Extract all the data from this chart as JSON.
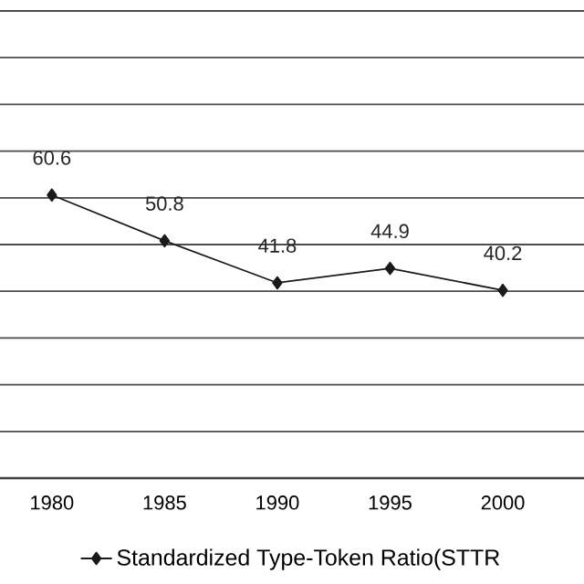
{
  "chart_data": {
    "type": "line",
    "categories": [
      "1980",
      "1985",
      "1990",
      "1995",
      "2000"
    ],
    "series": [
      {
        "name": "Standardized Type-Token Ratio(STTR",
        "color": "#1a1a1a",
        "values": [
          60.6,
          50.8,
          41.8,
          44.9,
          40.2
        ]
      }
    ],
    "ylim": [
      0,
      100
    ],
    "yticks": [
      {
        "value": 0,
        "label": null
      },
      {
        "value": 10,
        "label": null
      },
      {
        "value": 20,
        "label": null
      },
      {
        "value": 30,
        "label": null
      },
      {
        "value": 40,
        "label": null
      },
      {
        "value": 50,
        "label": null
      },
      {
        "value": 60,
        "label": null
      },
      {
        "value": 70,
        "label": null
      },
      {
        "value": 80,
        "label": null
      },
      {
        "value": 90,
        "label": null
      },
      {
        "value": 100,
        "label": null
      }
    ],
    "tick_labels": "x",
    "grid": "y",
    "legend": "bottom",
    "marker": "diamond",
    "line_style": "solid",
    "data_labels": true
  }
}
